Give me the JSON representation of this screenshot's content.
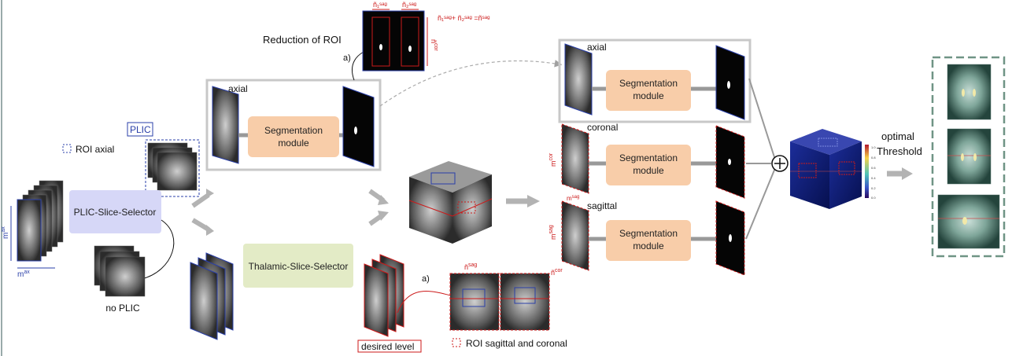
{
  "labels": {
    "reduction_of_roi": "Reduction of ROI",
    "a_top": "a)",
    "a_bottom": "a)",
    "axial_center": "axial",
    "axial_right": "axial",
    "coronal": "coronal",
    "sagittal": "sagittal",
    "plic": "PLIC",
    "roi_axial": "ROI axial",
    "no_plic": "no PLIC",
    "desired_level": "desired level",
    "roi_sag_cor": "ROI sagittal and coronal",
    "optimal": "optimal",
    "threshold": "Threshold",
    "plus": "⊕"
  },
  "modules": {
    "plic_selector": "PLIC-Slice-Selector",
    "thalamic_selector": "Thalamic-Slice-Selector",
    "seg_line1": "Segmentation",
    "seg_line2": "module"
  },
  "math": {
    "m": "m",
    "ax": "ax",
    "cor": "cor",
    "sag": "sag",
    "n": "ñ",
    "n1_sag": "ñ₁ˢᵃᵍ",
    "n2_sag": "ñ₂ˢᵃᵍ",
    "sum_eq": "ñ₁ˢᵃᵍ+ ñ₂ˢᵃᵍ =ñˢᵃᵍ"
  },
  "colors": {
    "blue_roi": "#2a3fa8",
    "red_roi": "#cc1a1a",
    "plic_box": "#d6d7f7",
    "thalamic_box": "#e3ebc6",
    "seg_box": "#f8cda9",
    "dashed_green": "#6f9485",
    "gray_arrow": "#b3b3b3"
  },
  "colorbar_ticks": [
    "1.0",
    "0.8",
    "0.6",
    "0.4",
    "0.2",
    "0.0"
  ]
}
